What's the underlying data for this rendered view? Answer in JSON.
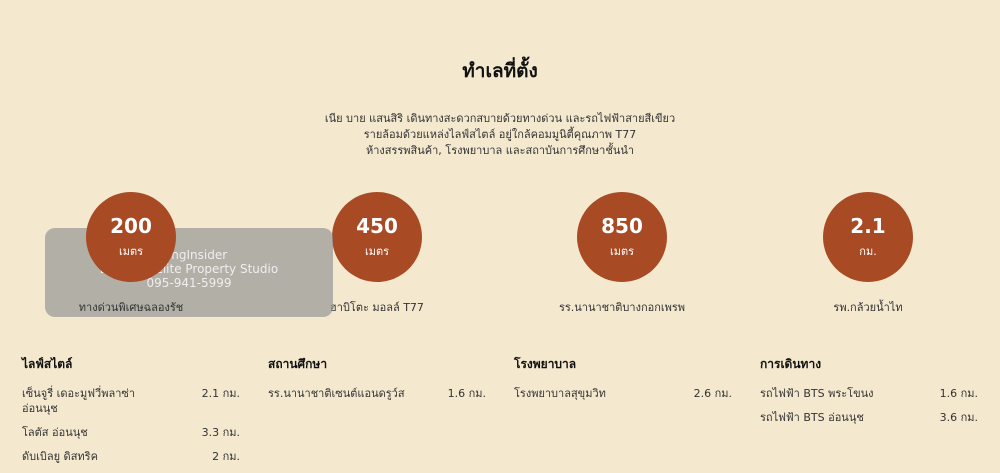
{
  "section": {
    "title": "ทำเลที่ตั้ง",
    "description": [
      "เนีย บาย แสนสิริ เดินทางสะดวกสบายด้วยทางด่วน และรถไฟฟ้าสายสีเขียว",
      "รายล้อมด้วยแหล่งไลฟ์สไตล์ อยู่ใกล้คอมมูนิตี้คุณภาพ T77",
      "ห้างสรรพสินค้า, โรงพยาบาล  และสถาบันการศึกษาชั้นนำ"
    ]
  },
  "stats": [
    {
      "value": "200",
      "unit": "เมตร",
      "label": "ทางด่วนพิเศษฉลองรัช"
    },
    {
      "value": "450",
      "unit": "เมตร",
      "label": "ฮาบิโตะ มอลล์ T77"
    },
    {
      "value": "850",
      "unit": "เมตร",
      "label": "รร.นานาชาติบางกอกเพรพ"
    },
    {
      "value": "2.1",
      "unit": "กม.",
      "label": "รพ.กล้วยน้ำไท"
    }
  ],
  "categories": [
    {
      "title": "ไลฟ์สไตล์",
      "items": [
        {
          "name": "เซ็นจูรี่ เดอะมูฟวี่พลาซ่า อ่อนนุช",
          "distance": "2.1 กม."
        },
        {
          "name": "โลตัส อ่อนนุช",
          "distance": "3.3 กม."
        },
        {
          "name": "ดับเบิลยู ดิสทริค",
          "distance": "2 กม."
        }
      ]
    },
    {
      "title": "สถานศึกษา",
      "items": [
        {
          "name": "รร.นานาชาติเซนต์แอนดรูว์ส",
          "distance": "1.6 กม."
        }
      ]
    },
    {
      "title": "โรงพยาบาล",
      "items": [
        {
          "name": "โรงพยาบาลสุขุมวิท",
          "distance": "2.6 กม."
        }
      ]
    },
    {
      "title": "การเดินทาง",
      "items": [
        {
          "name": "รถไฟฟ้า BTS พระโขนง",
          "distance": "1.6 กม."
        },
        {
          "name": "รถไฟฟ้า BTS อ่อนนุช",
          "distance": "3.6 กม."
        }
      ]
    }
  ],
  "watermark": {
    "brand": "LivingInsider",
    "agency": "Bangkok Elite Property Studio",
    "phone": "095-941-5999"
  },
  "colors": {
    "background": "#f4e9cf",
    "accent": "#a84a24"
  }
}
